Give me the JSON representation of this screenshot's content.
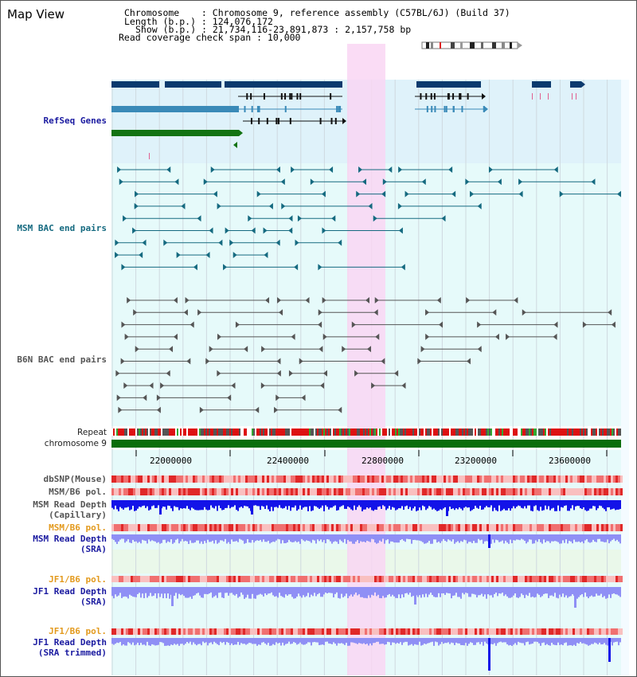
{
  "header": {
    "title": "Map View",
    "chromosome_line": "Chromosome    : Chromosome 9, reference assembly (C57BL/6J) (Build 37)",
    "length_line": "Length (b.p.) : 124,076,172",
    "show_line": "Show (b.p.) : 21,734,116-23,891,873 : 2,157,758 bp",
    "coverage_line": "Read coverage check span : 10,000"
  },
  "tracks": {
    "refseq": "RefSeq Genes",
    "msm_bac": "MSM BAC end pairs",
    "b6n_bac": "B6N BAC end pairs",
    "repeat": "Repeat",
    "chromosome": "chromosome 9",
    "dbsnp": "dbSNP(Mouse)",
    "msm_b6_pol_1": "MSM/B6 pol.",
    "msm_read_depth_cap_1": "MSM Read Depth",
    "msm_read_depth_cap_2": "(Capillary)",
    "msm_b6_pol_2": "MSM/B6 pol.",
    "msm_read_depth_sra_1": "MSM Read Depth",
    "msm_read_depth_sra_2": "(SRA)",
    "jf1_b6_pol_1": "JF1/B6 pol.",
    "jf1_read_depth_sra_1": "JF1 Read Depth",
    "jf1_read_depth_sra_2": "(SRA)",
    "jf1_b6_pol_2": "JF1/B6 pol.",
    "jf1_read_depth_trim_1": "JF1 Read Depth",
    "jf1_read_depth_trim_2": "(SRA trimmed)"
  },
  "axis": {
    "ticks": [
      "22000000",
      "22400000",
      "22800000",
      "23200000",
      "23600000"
    ]
  },
  "colors": {
    "refseq_navy": "#0b3a6e",
    "refseq_steel": "#3a8ab8",
    "refseq_green": "#137313",
    "msm_teal": "#156a80",
    "b6n_gray": "#555555",
    "highlight_pink": "#f9d6f3",
    "bg_lightblue": "#dff2fa",
    "bg_cyan": "#e6fafa",
    "depth_blue": "#1313e8",
    "depth_lavender": "#8f8ff5",
    "chrom_green": "#0b6e0b"
  }
}
